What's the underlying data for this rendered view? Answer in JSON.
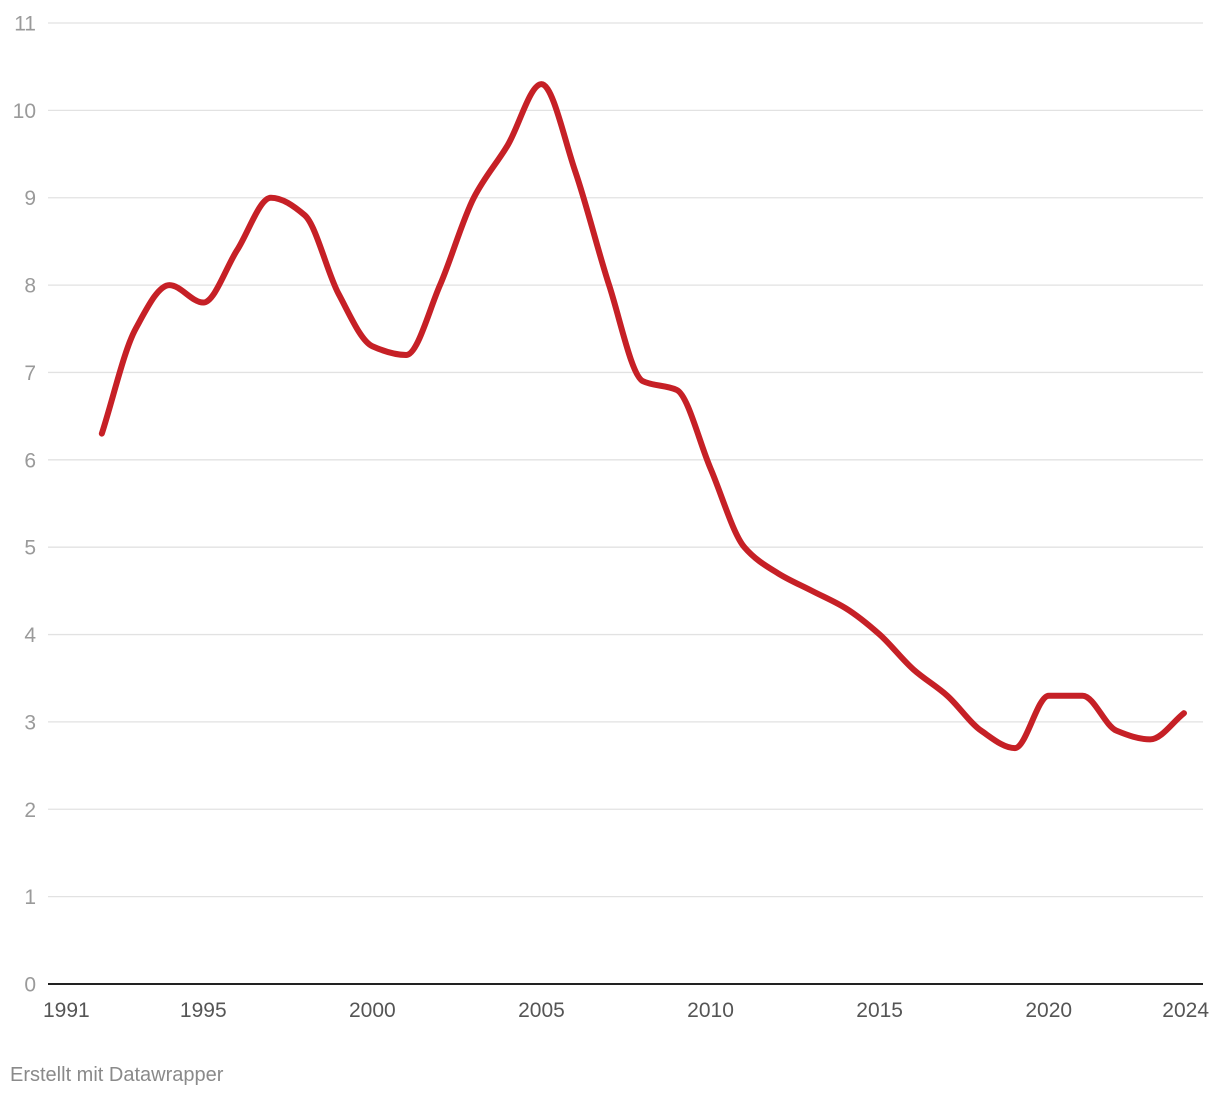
{
  "chart_data": {
    "type": "line",
    "title": "",
    "xlabel": "",
    "ylabel": "",
    "xlim": [
      1991,
      2024
    ],
    "ylim": [
      0,
      11
    ],
    "grid": true,
    "y_ticks": [
      "0",
      "1",
      "2",
      "3",
      "4",
      "5",
      "6",
      "7",
      "8",
      "9",
      "10",
      "11"
    ],
    "x_ticks": [
      "1991",
      "1995",
      "2000",
      "2005",
      "2010",
      "2015",
      "2020",
      "2024"
    ],
    "series": [
      {
        "name": "",
        "color": "#c62026",
        "x": [
          1992,
          1993,
          1994,
          1995,
          1996,
          1997,
          1998,
          1999,
          2000,
          2001,
          2002,
          2003,
          2004,
          2005,
          2006,
          2007,
          2008,
          2009,
          2010,
          2011,
          2012,
          2013,
          2014,
          2015,
          2016,
          2017,
          2018,
          2019,
          2020,
          2021,
          2022,
          2023,
          2024
        ],
        "values": [
          6.3,
          7.5,
          8.0,
          7.8,
          8.4,
          9.0,
          8.8,
          7.9,
          7.3,
          7.2,
          8.0,
          9.0,
          9.6,
          10.3,
          9.3,
          8.0,
          6.9,
          6.8,
          5.9,
          5.0,
          4.7,
          4.5,
          4.3,
          4.0,
          3.6,
          3.3,
          2.9,
          2.7,
          3.3,
          3.3,
          2.9,
          2.8,
          3.1
        ]
      }
    ]
  },
  "footer": {
    "credit": "Erstellt mit Datawrapper"
  }
}
